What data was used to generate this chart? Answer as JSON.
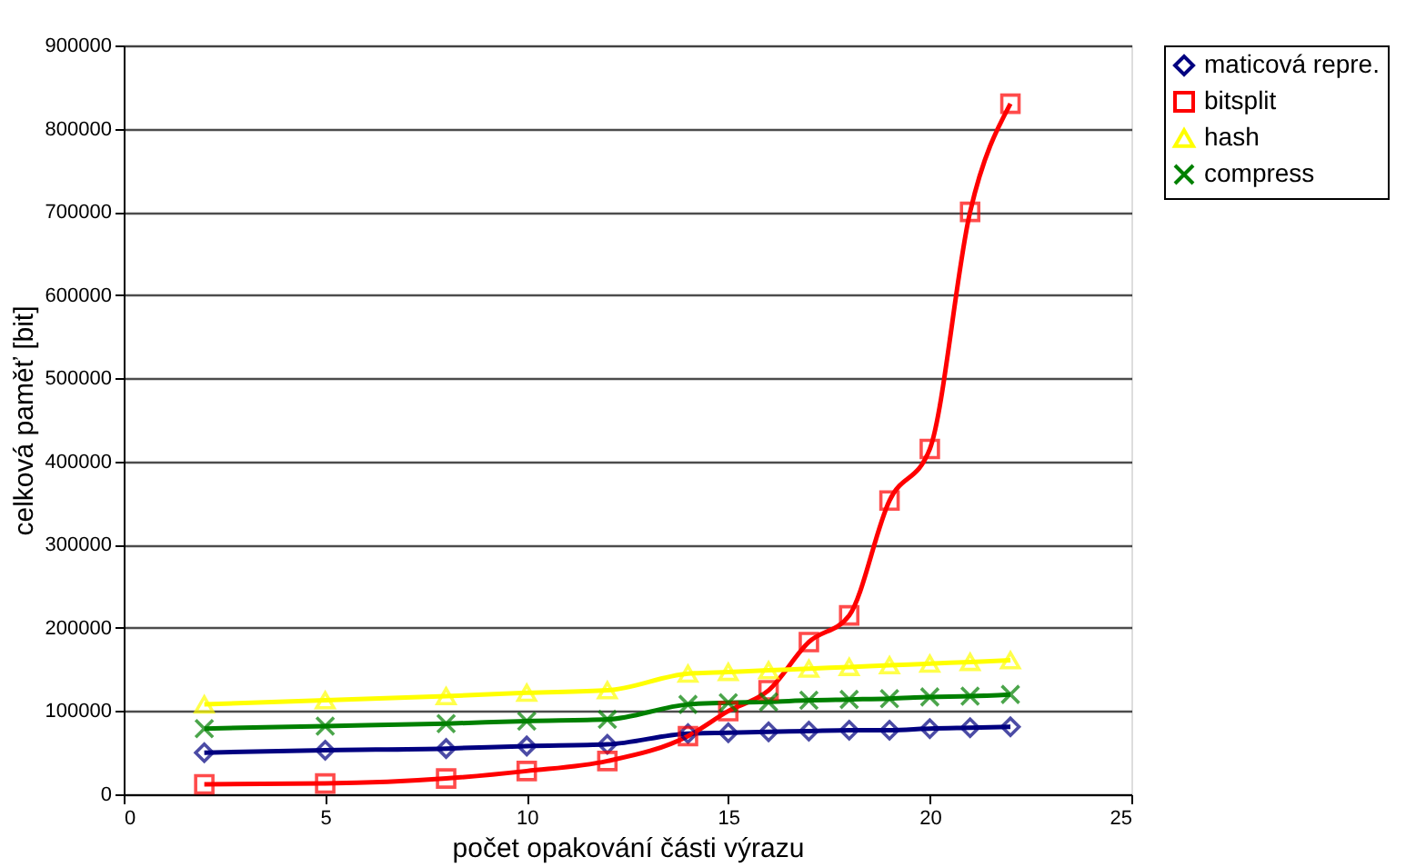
{
  "chart_data": {
    "type": "line",
    "xlabel": "počet opakování části výrazu",
    "ylabel": "celková paměť [bit]",
    "x": [
      2,
      5,
      8,
      10,
      12,
      14,
      15,
      16,
      17,
      18,
      19,
      20,
      21,
      22
    ],
    "series": [
      {
        "name": "maticová repre.",
        "color": "#000080",
        "marker": "diamond",
        "values": [
          50000,
          53000,
          55000,
          58000,
          60000,
          73000,
          74000,
          75000,
          76000,
          77000,
          77000,
          79000,
          80000,
          81000
        ]
      },
      {
        "name": "bitsplit",
        "color": "#ff0000",
        "marker": "square",
        "values": [
          12000,
          13000,
          19000,
          28000,
          40000,
          70000,
          100000,
          125000,
          183000,
          215000,
          353000,
          415000,
          700000,
          830000
        ]
      },
      {
        "name": "hash",
        "color": "#ffff00",
        "marker": "triangle",
        "values": [
          108000,
          113000,
          118000,
          122000,
          125000,
          145000,
          147000,
          149000,
          151000,
          153000,
          155000,
          157000,
          159000,
          161000
        ]
      },
      {
        "name": "compress",
        "color": "#008000",
        "marker": "cross",
        "values": [
          79000,
          82000,
          85000,
          88000,
          90000,
          108000,
          110000,
          111000,
          113000,
          114000,
          115000,
          117000,
          118000,
          120000
        ]
      }
    ],
    "xlim": [
      0,
      25
    ],
    "xticks": [
      0,
      5,
      10,
      15,
      20,
      25
    ],
    "ylim": [
      0,
      900000
    ],
    "yticks": [
      0,
      100000,
      200000,
      300000,
      400000,
      500000,
      600000,
      700000,
      800000,
      900000
    ],
    "grid": "y",
    "legend": "top right",
    "line_style": "solid"
  }
}
